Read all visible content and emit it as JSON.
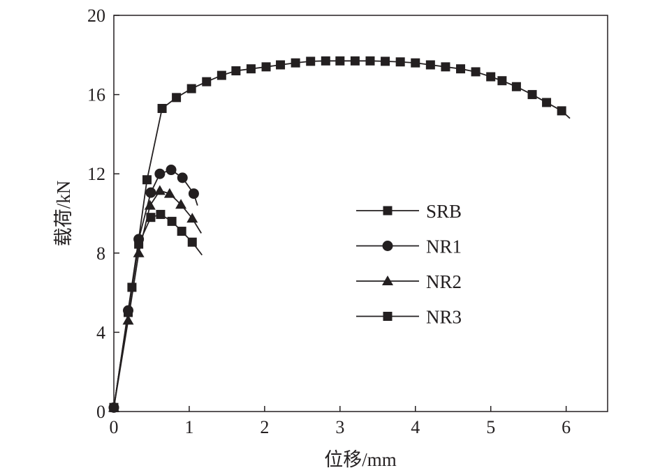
{
  "chart_data": {
    "type": "line",
    "title": "",
    "xlabel": "位移/mm",
    "ylabel": "载荷/kN",
    "xlim": [
      0,
      6.55
    ],
    "ylim": [
      0,
      20
    ],
    "xticks": [
      0,
      1,
      2,
      3,
      4,
      5,
      6
    ],
    "yticks": [
      0,
      4,
      8,
      12,
      16,
      20
    ],
    "grid": false,
    "legend_position": "center-right",
    "color": "#231f20",
    "series": [
      {
        "name": "SRB",
        "marker": "square",
        "x": [
          0,
          0.24,
          0.44,
          0.64,
          0.83,
          1.03,
          1.23,
          1.43,
          1.62,
          1.82,
          2.02,
          2.21,
          2.41,
          2.61,
          2.81,
          3.0,
          3.2,
          3.4,
          3.6,
          3.8,
          4.0,
          4.2,
          4.4,
          4.6,
          4.8,
          5.0,
          5.15,
          5.34,
          5.55,
          5.74,
          5.94
        ],
        "y": [
          0.2,
          6.27,
          11.7,
          15.3,
          15.85,
          16.3,
          16.65,
          16.97,
          17.2,
          17.3,
          17.4,
          17.5,
          17.6,
          17.68,
          17.7,
          17.7,
          17.7,
          17.7,
          17.68,
          17.65,
          17.6,
          17.5,
          17.4,
          17.3,
          17.15,
          16.9,
          16.7,
          16.4,
          16.0,
          15.6,
          15.18
        ],
        "line_end": [
          6.05,
          14.8
        ]
      },
      {
        "name": "NR1",
        "marker": "circle",
        "x": [
          0,
          0.19,
          0.33,
          0.49,
          0.61,
          0.76,
          0.91,
          1.06
        ],
        "y": [
          0.2,
          5.1,
          8.7,
          11.05,
          12.0,
          12.2,
          11.8,
          11.0
        ],
        "line_end": [
          1.11,
          10.4
        ]
      },
      {
        "name": "NR2",
        "marker": "triangle",
        "x": [
          0,
          0.19,
          0.33,
          0.48,
          0.61,
          0.74,
          0.89,
          1.04
        ],
        "y": [
          0.2,
          4.6,
          8.0,
          10.4,
          11.15,
          11.0,
          10.45,
          9.75
        ],
        "line_end": [
          1.16,
          9.0
        ]
      },
      {
        "name": "NR3",
        "marker": "square",
        "x": [
          0,
          0.19,
          0.33,
          0.49,
          0.62,
          0.77,
          0.9,
          1.04
        ],
        "y": [
          0.2,
          5.0,
          8.45,
          9.8,
          9.95,
          9.6,
          9.1,
          8.55
        ],
        "line_end": [
          1.17,
          7.9
        ]
      }
    ]
  }
}
